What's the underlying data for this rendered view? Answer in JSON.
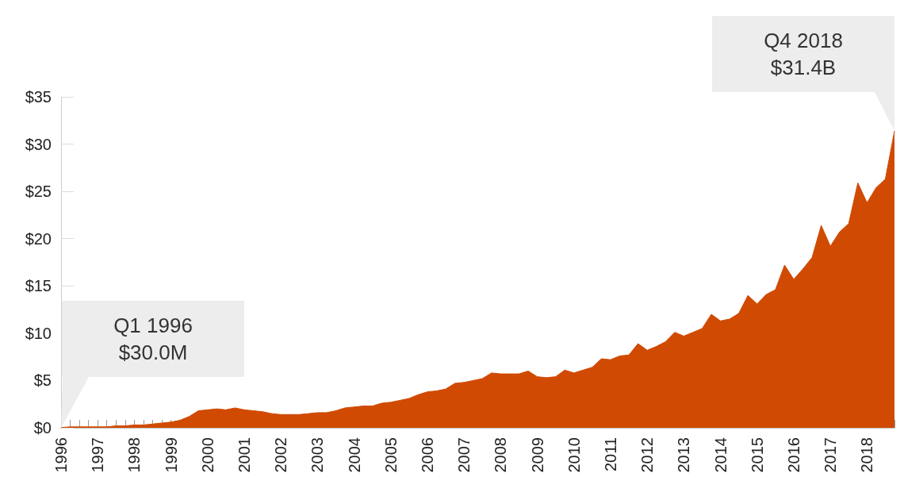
{
  "chart_data": {
    "type": "area",
    "categories": [
      "1996",
      null,
      null,
      null,
      "1997",
      null,
      null,
      null,
      "1998",
      null,
      null,
      null,
      "1999",
      null,
      null,
      null,
      "2000",
      null,
      null,
      null,
      "2001",
      null,
      null,
      null,
      "2002",
      null,
      null,
      null,
      "2003",
      null,
      null,
      null,
      "2004",
      null,
      null,
      null,
      "2005",
      null,
      null,
      null,
      "2006",
      null,
      null,
      null,
      "2007",
      null,
      null,
      null,
      "2008",
      null,
      null,
      null,
      "2009",
      null,
      null,
      null,
      "2010",
      null,
      null,
      null,
      "2011",
      null,
      null,
      null,
      "2012",
      null,
      null,
      null,
      "2013",
      null,
      null,
      null,
      "2014",
      null,
      null,
      null,
      "2015",
      null,
      null,
      null,
      "2016",
      null,
      null,
      null,
      "2017",
      null,
      null,
      null,
      "2018",
      null,
      null,
      null
    ],
    "values": [
      0.03,
      0.1,
      0.1,
      0.1,
      0.1,
      0.1,
      0.2,
      0.2,
      0.3,
      0.3,
      0.4,
      0.5,
      0.6,
      0.8,
      1.2,
      1.8,
      1.9,
      2.0,
      1.9,
      2.1,
      1.9,
      1.8,
      1.7,
      1.5,
      1.4,
      1.4,
      1.4,
      1.5,
      1.6,
      1.6,
      1.8,
      2.1,
      2.2,
      2.3,
      2.3,
      2.6,
      2.7,
      2.9,
      3.1,
      3.5,
      3.8,
      3.9,
      4.1,
      4.7,
      4.8,
      5.0,
      5.2,
      5.8,
      5.7,
      5.7,
      5.7,
      6.0,
      5.4,
      5.3,
      5.4,
      6.1,
      5.8,
      6.1,
      6.4,
      7.3,
      7.2,
      7.6,
      7.7,
      8.9,
      8.2,
      8.6,
      9.1,
      10.1,
      9.7,
      10.1,
      10.5,
      12.0,
      11.3,
      11.5,
      12.1,
      14.0,
      13.1,
      14.1,
      14.6,
      17.2,
      15.7,
      16.8,
      18.0,
      21.4,
      19.2,
      20.7,
      21.6,
      25.9,
      23.8,
      25.4,
      26.3,
      31.4
    ],
    "color": "#d04a02",
    "ylim": [
      0,
      35
    ],
    "yticks": [
      {
        "value": 0,
        "label": "$0"
      },
      {
        "value": 5,
        "label": "$5"
      },
      {
        "value": 10,
        "label": "$10"
      },
      {
        "value": 15,
        "label": "$15"
      },
      {
        "value": 20,
        "label": "$20"
      },
      {
        "value": 25,
        "label": "$25"
      },
      {
        "value": 30,
        "label": "$30"
      },
      {
        "value": 35,
        "label": "$35"
      }
    ],
    "grid": false,
    "annotations": [
      "Q1 1996\n$30.0M",
      "Q4 2018\n$31.4B"
    ]
  }
}
